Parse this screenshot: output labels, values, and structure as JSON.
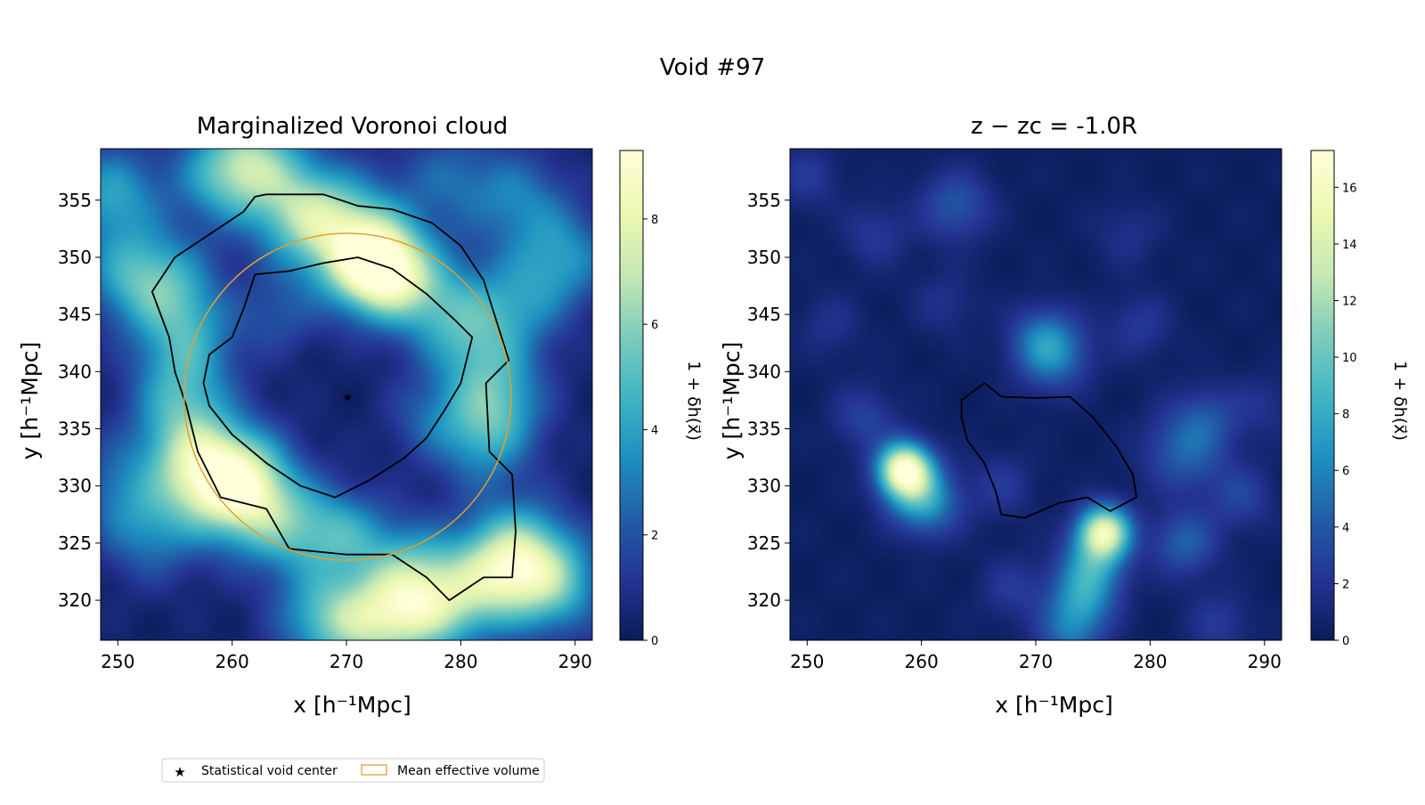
{
  "figure": {
    "title": "Void #97"
  },
  "chart_data": [
    {
      "type": "heatmap",
      "title": "Marginalized Voronoi cloud",
      "xlabel": "x [h⁻¹Mpc]",
      "ylabel": "y [h⁻¹Mpc]",
      "xlim": [
        248.5,
        291.5
      ],
      "ylim": [
        316.5,
        359.5
      ],
      "xticks": [
        250,
        260,
        270,
        280,
        290
      ],
      "yticks": [
        320,
        325,
        330,
        335,
        340,
        345,
        350,
        355
      ],
      "colorbar": {
        "label": "1 + δh(x⃗)",
        "min": 0,
        "max": 9.3,
        "ticks": [
          0,
          2,
          4,
          6,
          8
        ]
      },
      "colormap": "YlGnBu",
      "grid": false,
      "void_center": {
        "x": 270.1,
        "y": 337.8,
        "color": "#e0a030"
      },
      "mean_effective_volume": {
        "center_x": 270.1,
        "center_y": 337.8,
        "radius": 14.3,
        "color": "#e0a030"
      },
      "boundary_contours": [
        [
          [
            263,
            355.5
          ],
          [
            268,
            355.5
          ],
          [
            271,
            354.5
          ],
          [
            274,
            354.2
          ],
          [
            277.5,
            353
          ],
          [
            280,
            351
          ],
          [
            282,
            348
          ],
          [
            284.2,
            341
          ],
          [
            282.2,
            339
          ],
          [
            282.5,
            333
          ],
          [
            284.5,
            331
          ],
          [
            284.8,
            326
          ],
          [
            284.5,
            322
          ],
          [
            282,
            322
          ],
          [
            279,
            320
          ],
          [
            277,
            322
          ],
          [
            274,
            324
          ],
          [
            270,
            324
          ],
          [
            265,
            324.5
          ],
          [
            263,
            328
          ],
          [
            259,
            329
          ],
          [
            257,
            333
          ],
          [
            256,
            337
          ],
          [
            255,
            340
          ],
          [
            254.5,
            343
          ],
          [
            253,
            347
          ],
          [
            255,
            350
          ],
          [
            258,
            352
          ],
          [
            261,
            354
          ],
          [
            262,
            355.3
          ],
          [
            263,
            355.5
          ]
        ],
        [
          [
            262,
            348.5
          ],
          [
            265,
            348.8
          ],
          [
            268,
            349.5
          ],
          [
            271,
            350
          ],
          [
            274,
            349
          ],
          [
            277,
            346.8
          ],
          [
            279.5,
            344.5
          ],
          [
            281,
            343
          ],
          [
            280,
            339
          ],
          [
            278.5,
            336.5
          ],
          [
            277,
            334.2
          ],
          [
            275,
            332.4
          ],
          [
            272,
            330.5
          ],
          [
            269,
            329
          ],
          [
            266,
            330
          ],
          [
            263,
            332
          ],
          [
            260,
            334.5
          ],
          [
            258,
            337
          ],
          [
            257.5,
            339
          ],
          [
            258,
            341.5
          ],
          [
            260,
            343
          ],
          [
            261,
            345.5
          ],
          [
            262,
            348.5
          ]
        ]
      ],
      "hotspots": [
        {
          "x": 273,
          "y": 349,
          "s": 2.8,
          "a": 8.5
        },
        {
          "x": 270,
          "y": 352,
          "s": 3.5,
          "a": 5
        },
        {
          "x": 266,
          "y": 354,
          "s": 3,
          "a": 4
        },
        {
          "x": 262,
          "y": 358.5,
          "s": 3,
          "a": 4.5
        },
        {
          "x": 259,
          "y": 357,
          "s": 3,
          "a": 3
        },
        {
          "x": 277.5,
          "y": 346.5,
          "s": 3,
          "a": 3
        },
        {
          "x": 281,
          "y": 343,
          "s": 3,
          "a": 3
        },
        {
          "x": 283,
          "y": 338,
          "s": 3,
          "a": 3.5
        },
        {
          "x": 282,
          "y": 334,
          "s": 3,
          "a": 3
        },
        {
          "x": 258,
          "y": 330.5,
          "s": 3,
          "a": 5
        },
        {
          "x": 261,
          "y": 331,
          "s": 3,
          "a": 4
        },
        {
          "x": 256,
          "y": 333.5,
          "s": 3,
          "a": 3
        },
        {
          "x": 255.5,
          "y": 338,
          "s": 3,
          "a": 3
        },
        {
          "x": 256,
          "y": 343,
          "s": 3,
          "a": 3
        },
        {
          "x": 254.5,
          "y": 347.5,
          "s": 3,
          "a": 3
        },
        {
          "x": 262,
          "y": 328,
          "s": 3,
          "a": 3.5
        },
        {
          "x": 266,
          "y": 326,
          "s": 3,
          "a": 3
        },
        {
          "x": 270,
          "y": 326,
          "s": 2.5,
          "a": 2.5
        },
        {
          "x": 275,
          "y": 323,
          "s": 3,
          "a": 3
        },
        {
          "x": 279,
          "y": 320,
          "s": 3,
          "a": 3
        },
        {
          "x": 283,
          "y": 322,
          "s": 3,
          "a": 4
        },
        {
          "x": 285,
          "y": 324.5,
          "s": 3,
          "a": 4
        },
        {
          "x": 288,
          "y": 321.5,
          "s": 3,
          "a": 4.5
        },
        {
          "x": 276,
          "y": 319,
          "s": 3,
          "a": 4
        },
        {
          "x": 272,
          "y": 318,
          "s": 3,
          "a": 4
        },
        {
          "x": 268,
          "y": 318.5,
          "s": 3,
          "a": 3.5
        },
        {
          "x": 289,
          "y": 350,
          "s": 3,
          "a": 3
        },
        {
          "x": 285,
          "y": 346,
          "s": 3,
          "a": 2.5
        },
        {
          "x": 285,
          "y": 355,
          "s": 3,
          "a": 2.5
        },
        {
          "x": 249.5,
          "y": 355.5,
          "s": 3,
          "a": 3.5
        },
        {
          "x": 251,
          "y": 348.5,
          "s": 3,
          "a": 3
        },
        {
          "x": 253,
          "y": 326,
          "s": 3,
          "a": 2.5
        },
        {
          "x": 264,
          "y": 345,
          "s": 2.5,
          "a": 1.5
        },
        {
          "x": 277,
          "y": 336,
          "s": 2.5,
          "a": 1.5
        },
        {
          "x": 250,
          "y": 330,
          "s": 3,
          "a": 2
        },
        {
          "x": 279,
          "y": 357,
          "s": 3,
          "a": 2
        }
      ]
    },
    {
      "type": "heatmap",
      "title": "z − zc = -1.0R",
      "xlabel": "x [h⁻¹Mpc]",
      "ylabel": "y [h⁻¹Mpc]",
      "xlim": [
        248.5,
        291.5
      ],
      "ylim": [
        316.5,
        359.5
      ],
      "xticks": [
        250,
        260,
        270,
        280,
        290
      ],
      "yticks": [
        320,
        325,
        330,
        335,
        340,
        345,
        350,
        355
      ],
      "colorbar": {
        "label": "1 + δh(x⃗)",
        "min": 0,
        "max": 17.3,
        "ticks": [
          0,
          2,
          4,
          6,
          8,
          10,
          12,
          14,
          16
        ]
      },
      "colormap": "YlGnBu",
      "grid": false,
      "boundary_contours": [
        [
          [
            265.5,
            339
          ],
          [
            267,
            337.8
          ],
          [
            270,
            337.7
          ],
          [
            273,
            337.8
          ],
          [
            275,
            336
          ],
          [
            277,
            333.5
          ],
          [
            278.5,
            331
          ],
          [
            278.8,
            329
          ],
          [
            276.5,
            327.8
          ],
          [
            274.5,
            329
          ],
          [
            272,
            328.5
          ],
          [
            269,
            327.2
          ],
          [
            267,
            327.5
          ],
          [
            266.5,
            329.5
          ],
          [
            265.5,
            332
          ],
          [
            264,
            334
          ],
          [
            263.5,
            336
          ],
          [
            263.5,
            337.5
          ],
          [
            265.5,
            339
          ]
        ]
      ],
      "hotspots": [
        {
          "x": 258.5,
          "y": 331.5,
          "s": 1.6,
          "a": 15
        },
        {
          "x": 259.5,
          "y": 329.5,
          "s": 2,
          "a": 6
        },
        {
          "x": 261,
          "y": 328,
          "s": 2,
          "a": 3
        },
        {
          "x": 276,
          "y": 326,
          "s": 1.6,
          "a": 14
        },
        {
          "x": 275,
          "y": 323,
          "s": 2,
          "a": 6
        },
        {
          "x": 274,
          "y": 320,
          "s": 2,
          "a": 5
        },
        {
          "x": 273,
          "y": 317,
          "s": 2,
          "a": 4
        },
        {
          "x": 271.5,
          "y": 341.5,
          "s": 2.2,
          "a": 5
        },
        {
          "x": 270.5,
          "y": 343,
          "s": 2,
          "a": 3
        },
        {
          "x": 283,
          "y": 325,
          "s": 2,
          "a": 4
        },
        {
          "x": 283,
          "y": 333,
          "s": 2.5,
          "a": 4
        },
        {
          "x": 285,
          "y": 336,
          "s": 2,
          "a": 2.5
        },
        {
          "x": 263,
          "y": 354.5,
          "s": 2.2,
          "a": 3.5
        },
        {
          "x": 255,
          "y": 336,
          "s": 2,
          "a": 2.5
        },
        {
          "x": 267,
          "y": 330,
          "s": 2,
          "a": 2
        },
        {
          "x": 288,
          "y": 329,
          "s": 2,
          "a": 2.5
        },
        {
          "x": 268,
          "y": 321,
          "s": 2,
          "a": 2
        },
        {
          "x": 256,
          "y": 352,
          "s": 2,
          "a": 2
        },
        {
          "x": 250,
          "y": 357,
          "s": 2,
          "a": 2
        },
        {
          "x": 279,
          "y": 344,
          "s": 2,
          "a": 2
        },
        {
          "x": 262,
          "y": 346,
          "s": 2,
          "a": 1.5
        },
        {
          "x": 286,
          "y": 318,
          "s": 2,
          "a": 2
        },
        {
          "x": 290,
          "y": 337,
          "s": 2,
          "a": 1.5
        },
        {
          "x": 252,
          "y": 344,
          "s": 2,
          "a": 1.5
        },
        {
          "x": 278,
          "y": 352,
          "s": 2,
          "a": 1.5
        }
      ]
    }
  ],
  "legend": {
    "placement": "bottom-left",
    "entries": [
      {
        "label": "Statistical void center",
        "marker": "star",
        "color": "#e0a030"
      },
      {
        "label": "Mean effective volume",
        "marker": "rectangle-outline",
        "color": "#e0a030"
      }
    ]
  }
}
